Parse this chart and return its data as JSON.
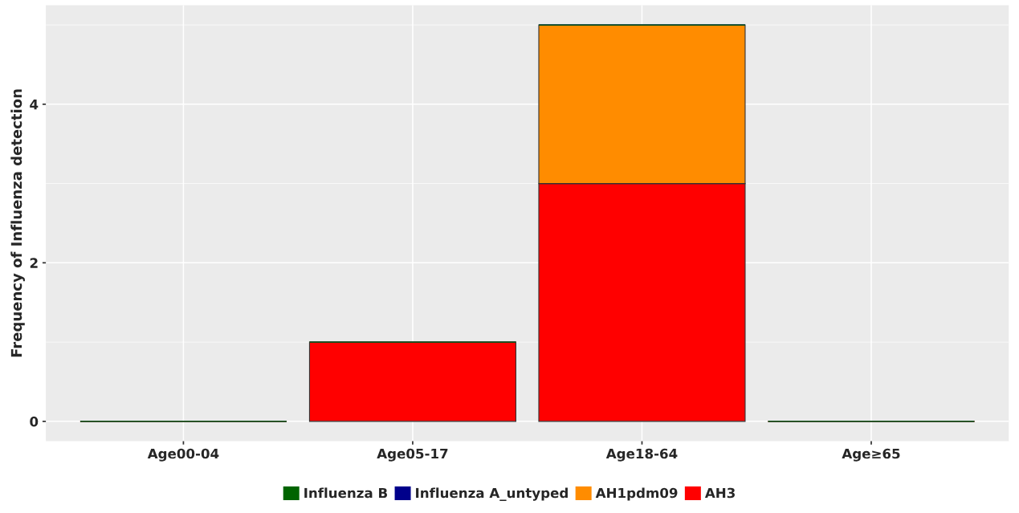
{
  "chart_data": {
    "type": "bar",
    "ylabel": "Frequency of Influenza detection",
    "categories": [
      "Age00-04",
      "Age05-17",
      "Age18-64",
      "Age≥65"
    ],
    "stacked": true,
    "series": [
      {
        "name": "AH3",
        "color": "#ff0000",
        "values": [
          0,
          1,
          3,
          0
        ]
      },
      {
        "name": "AH1pdm09",
        "color": "#ff8c00",
        "values": [
          0,
          0,
          2,
          0
        ]
      },
      {
        "name": "Influenza A_untyped",
        "color": "#00008b",
        "values": [
          0,
          0,
          0,
          0
        ]
      },
      {
        "name": "Influenza B",
        "color": "#006400",
        "values": [
          0,
          0,
          0,
          0
        ]
      }
    ],
    "ylim": [
      -0.25,
      5.25
    ],
    "yticks": [
      0,
      2,
      4
    ],
    "grid": true,
    "legend": "bottom"
  }
}
